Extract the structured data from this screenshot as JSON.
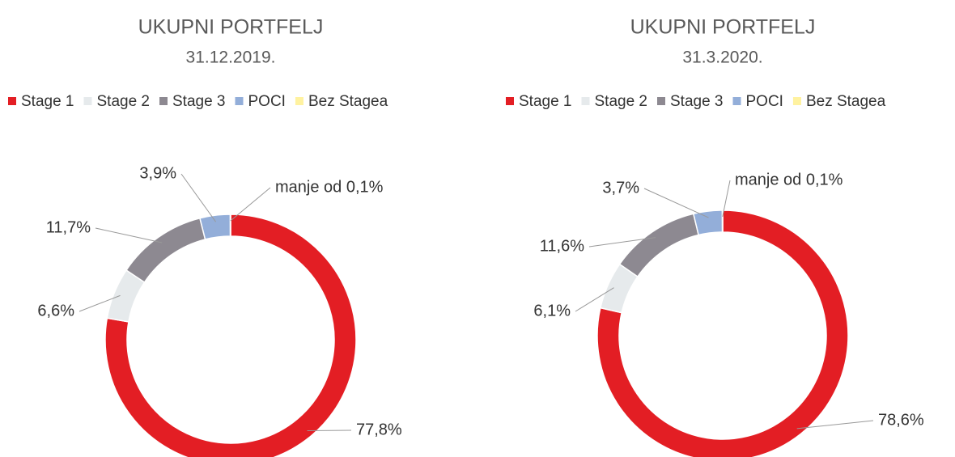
{
  "chart_data": [
    {
      "type": "donut",
      "title": "UKUPNI PORTFELJ",
      "subtitle": "31.12.2019.",
      "categories": [
        "Stage 1",
        "Stage 2",
        "Stage 3",
        "POCI",
        "Bez Stagea"
      ],
      "values": [
        77.8,
        6.6,
        11.7,
        3.9,
        0.05
      ],
      "value_labels": [
        "77,8%",
        "6,6%",
        "11,7%",
        "3,9%",
        "manje od 0,1%"
      ],
      "colors": [
        "#e31e24",
        "#e6eaec",
        "#8d8991",
        "#93aed9",
        "#fff2a0"
      ],
      "legend": "top"
    },
    {
      "type": "donut",
      "title": "UKUPNI PORTFELJ",
      "subtitle": "31.3.2020.",
      "categories": [
        "Stage 1",
        "Stage 2",
        "Stage 3",
        "POCI",
        "Bez Stagea"
      ],
      "values": [
        78.6,
        6.1,
        11.6,
        3.7,
        0.05
      ],
      "value_labels": [
        "78,6%",
        "6,1%",
        "11,6%",
        "3,7%",
        "manje od 0,1%"
      ],
      "colors": [
        "#e31e24",
        "#e6eaec",
        "#8d8991",
        "#93aed9",
        "#fff2a0"
      ],
      "legend": "top"
    }
  ]
}
